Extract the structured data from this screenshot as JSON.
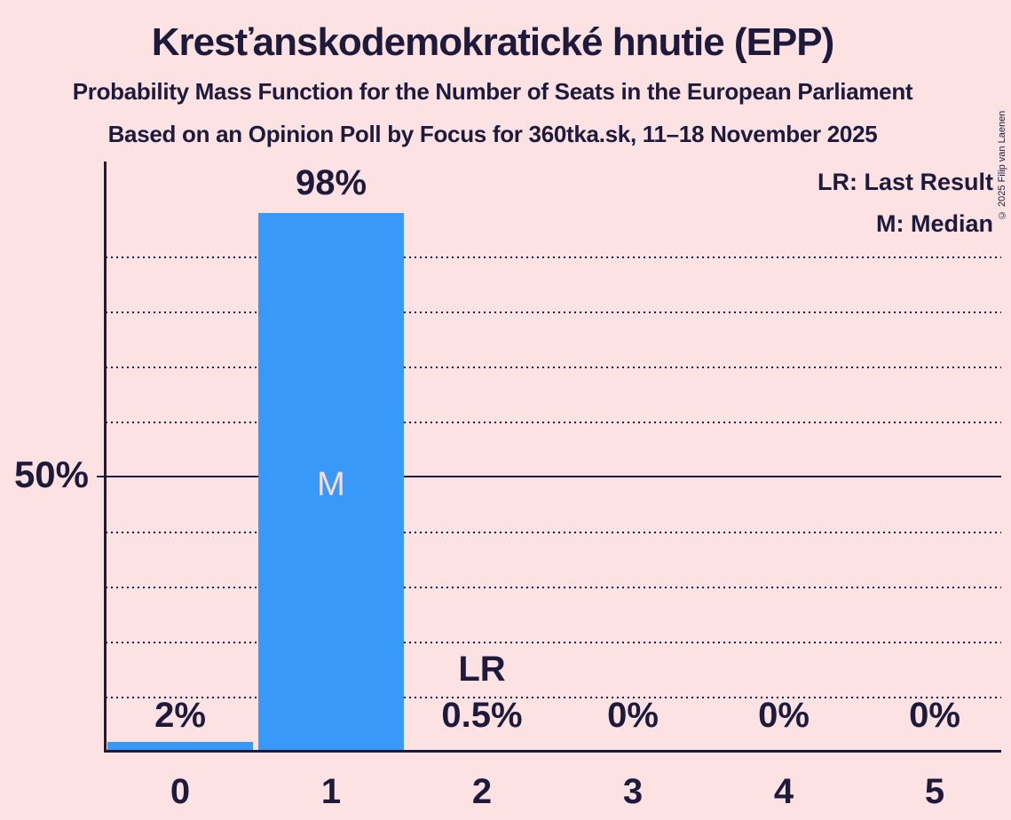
{
  "header": {
    "title": "Kresťanskodemokratické hnutie (EPP)",
    "subtitle1": "Probability Mass Function for the Number of Seats in the European Parliament",
    "subtitle2": "Based on an Opinion Poll by Focus for 360tka.sk, 11–18 November 2025",
    "copyright": "© 2025 Filip van Laenen"
  },
  "legend": {
    "last_result": "LR: Last Result",
    "median": "M: Median"
  },
  "y_axis": {
    "label_50": "50%"
  },
  "chart_data": {
    "type": "bar",
    "title": "Kresťanskodemokratické hnutie (EPP)",
    "xlabel": "Number of seats in the European Parliament",
    "ylabel": "Probability mass",
    "categories": [
      "0",
      "1",
      "2",
      "3",
      "4",
      "5"
    ],
    "values": [
      2,
      98,
      0.5,
      0,
      0,
      0
    ],
    "bar_labels": [
      "2%",
      "98%",
      "0.5%",
      "0%",
      "0%",
      "0%"
    ],
    "ylim": [
      0,
      100
    ],
    "gridlines_pct": [
      10,
      20,
      30,
      40,
      60,
      70,
      80,
      90
    ],
    "solid_line_pct": 50,
    "legend_position": "top-right",
    "grid": "dotted",
    "annotations": {
      "median_label": "M",
      "median_category": "1",
      "last_result_label": "LR",
      "last_result_category": "2"
    },
    "colors": {
      "bar": "#3899f8",
      "background": "#fde2e4",
      "text": "#1e1a3c",
      "median_text": "#fbdce3"
    }
  }
}
